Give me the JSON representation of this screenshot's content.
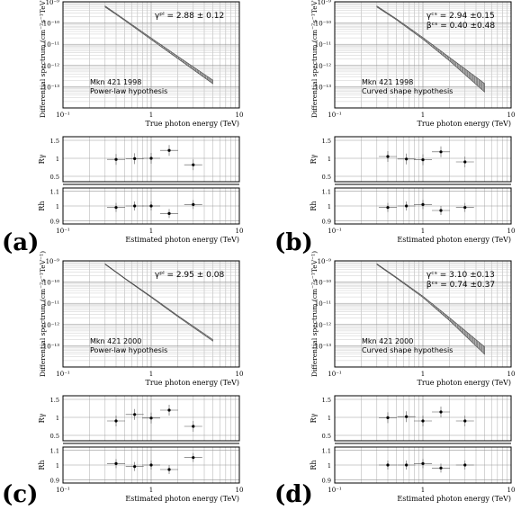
{
  "panels": [
    {
      "letter": "(a)",
      "source_line1": "Mkn 421 1998",
      "source_line2": "Power-law hypothesis",
      "fit_lines": [
        "γᵖˡ = 2.88 ± 0.12"
      ]
    },
    {
      "letter": "(b)",
      "source_line1": "Mkn 421 1998",
      "source_line2": "Curved shape hypothesis",
      "fit_lines": [
        "γᶜˢ = 2.94 ±0.15",
        "βᶜˢ =  0.40 ±0.48"
      ]
    },
    {
      "letter": "(c)",
      "source_line1": "Mkn 421 2000",
      "source_line2": "Power-law hypothesis",
      "fit_lines": [
        "γᵖˡ = 2.95 ± 0.08"
      ]
    },
    {
      "letter": "(d)",
      "source_line1": "Mkn 421 2000",
      "source_line2": "Curved shape hypothesis",
      "fit_lines": [
        "γᶜˢ = 3.10 ±0.13",
        "βᶜˢ =  0.74 ±0.37"
      ]
    }
  ],
  "axis_text": {
    "spectrum_ylabel": "Differential spectrum (cm⁻²s⁻¹TeV⁻¹)",
    "spectrum_xlabel": "True photon energy (TeV)",
    "ratio_xlabel": "Estimated photon energy (TeV)",
    "r_gamma_label": "Rγ",
    "r_h_label": "Rh",
    "x_ticks": [
      "10⁻¹",
      "1",
      "10"
    ],
    "spectrum_y_ticks": [
      "10⁻⁹",
      "10⁻¹⁰",
      "10⁻¹¹",
      "10⁻¹²",
      "10⁻¹³"
    ],
    "r_gamma_ticks": [
      "1.5",
      "1",
      "0.5"
    ],
    "r_h_ticks": [
      "1.1",
      "1",
      "0.9"
    ]
  },
  "chart_data": [
    {
      "type": "area",
      "panel": "(a)",
      "title": "",
      "xlabel": "True photon energy (TeV)",
      "ylabel": "Differential spectrum (cm-2s-1TeV-1)",
      "xscale": "log",
      "yscale": "log",
      "xlim": [
        0.1,
        10
      ],
      "ylim": [
        1e-14,
        1e-09
      ],
      "grid": true,
      "band": {
        "x": [
          0.3,
          0.5,
          1,
          2,
          5
        ],
        "y": [
          6e-10,
          1.4e-10,
          1.8e-11,
          2.4e-12,
          1.7e-13
        ],
        "width_dex": [
          0.05,
          0.05,
          0.07,
          0.11,
          0.17
        ]
      },
      "ratio_gamma": {
        "x": [
          0.4,
          0.65,
          1.0,
          1.6,
          3.0
        ],
        "y": [
          0.97,
          0.99,
          1.0,
          1.22,
          0.82
        ]
      },
      "ratio_h": {
        "x": [
          0.4,
          0.65,
          1.0,
          1.6,
          3.0
        ],
        "y": [
          0.99,
          1.0,
          1.0,
          0.95,
          1.01
        ]
      }
    },
    {
      "type": "area",
      "panel": "(b)",
      "title": "",
      "xlabel": "True photon energy (TeV)",
      "ylabel": "Differential spectrum (cm-2s-1TeV-1)",
      "xscale": "log",
      "yscale": "log",
      "xlim": [
        0.1,
        10
      ],
      "ylim": [
        1e-14,
        1e-09
      ],
      "grid": true,
      "band": {
        "x": [
          0.3,
          0.5,
          1,
          2,
          5
        ],
        "y": [
          6e-10,
          1.5e-10,
          1.9e-11,
          2e-12,
          9e-14
        ],
        "width_dex": [
          0.05,
          0.05,
          0.08,
          0.17,
          0.4
        ]
      },
      "ratio_gamma": {
        "x": [
          0.4,
          0.65,
          1.0,
          1.6,
          3.0
        ],
        "y": [
          1.05,
          0.98,
          0.96,
          1.18,
          0.9
        ]
      },
      "ratio_h": {
        "x": [
          0.4,
          0.65,
          1.0,
          1.6,
          3.0
        ],
        "y": [
          0.99,
          1.0,
          1.01,
          0.97,
          0.99
        ]
      }
    },
    {
      "type": "area",
      "panel": "(c)",
      "title": "",
      "xlabel": "True photon energy (TeV)",
      "ylabel": "Differential spectrum (cm-2s-1TeV-1)",
      "xscale": "log",
      "yscale": "log",
      "xlim": [
        0.1,
        10
      ],
      "ylim": [
        1e-14,
        1e-09
      ],
      "grid": true,
      "band": {
        "x": [
          0.3,
          0.5,
          1,
          2,
          5
        ],
        "y": [
          7e-10,
          1.5e-10,
          2e-11,
          2.5e-12,
          1.8e-13
        ],
        "width_dex": [
          0.03,
          0.03,
          0.04,
          0.05,
          0.07
        ]
      },
      "ratio_gamma": {
        "x": [
          0.4,
          0.65,
          1.0,
          1.6,
          3.0
        ],
        "y": [
          0.9,
          1.08,
          0.98,
          1.2,
          0.75
        ]
      },
      "ratio_h": {
        "x": [
          0.4,
          0.65,
          1.0,
          1.6,
          3.0
        ],
        "y": [
          1.01,
          0.99,
          1.0,
          0.97,
          1.05
        ]
      }
    },
    {
      "type": "area",
      "panel": "(d)",
      "title": "",
      "xlabel": "True photon energy (TeV)",
      "ylabel": "Differential spectrum (cm-2s-1TeV-1)",
      "xscale": "log",
      "yscale": "log",
      "xlim": [
        0.1,
        10
      ],
      "ylim": [
        1e-14,
        1e-09
      ],
      "grid": true,
      "band": {
        "x": [
          0.3,
          0.5,
          1,
          2,
          5
        ],
        "y": [
          7e-10,
          1.6e-10,
          2e-11,
          1.8e-12,
          6e-14
        ],
        "width_dex": [
          0.04,
          0.04,
          0.06,
          0.14,
          0.35
        ]
      },
      "ratio_gamma": {
        "x": [
          0.4,
          0.65,
          1.0,
          1.6,
          3.0
        ],
        "y": [
          0.99,
          1.02,
          0.9,
          1.15,
          0.9
        ]
      },
      "ratio_h": {
        "x": [
          0.4,
          0.65,
          1.0,
          1.6,
          3.0
        ],
        "y": [
          1.0,
          1.0,
          1.01,
          0.98,
          1.0
        ]
      }
    }
  ]
}
